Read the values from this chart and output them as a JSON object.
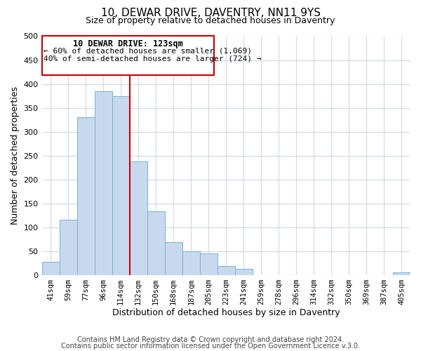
{
  "title": "10, DEWAR DRIVE, DAVENTRY, NN11 9YS",
  "subtitle": "Size of property relative to detached houses in Daventry",
  "xlabel": "Distribution of detached houses by size in Daventry",
  "ylabel": "Number of detached properties",
  "bar_labels": [
    "41sqm",
    "59sqm",
    "77sqm",
    "96sqm",
    "114sqm",
    "132sqm",
    "150sqm",
    "168sqm",
    "187sqm",
    "205sqm",
    "223sqm",
    "241sqm",
    "259sqm",
    "278sqm",
    "296sqm",
    "314sqm",
    "332sqm",
    "350sqm",
    "369sqm",
    "387sqm",
    "405sqm"
  ],
  "bar_values": [
    28,
    116,
    330,
    385,
    375,
    237,
    133,
    68,
    50,
    45,
    18,
    13,
    0,
    0,
    0,
    0,
    0,
    0,
    0,
    0,
    5
  ],
  "bar_color": "#c8d9ef",
  "bar_edgecolor": "#7aafd4",
  "ylim": [
    0,
    500
  ],
  "yticks": [
    0,
    50,
    100,
    150,
    200,
    250,
    300,
    350,
    400,
    450,
    500
  ],
  "property_line_x": 4.5,
  "annotation_title": "10 DEWAR DRIVE: 123sqm",
  "annotation_line1": "← 60% of detached houses are smaller (1,069)",
  "annotation_line2": "40% of semi-detached houses are larger (724) →",
  "footer1": "Contains HM Land Registry data © Crown copyright and database right 2024.",
  "footer2": "Contains public sector information licensed under the Open Government Licence v.3.0.",
  "bg_color": "#ffffff",
  "grid_color": "#d0d8e8",
  "annotation_box_color": "#cc0000"
}
